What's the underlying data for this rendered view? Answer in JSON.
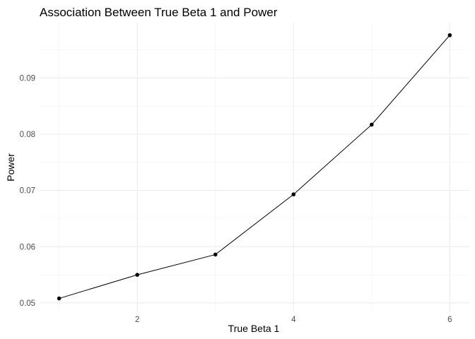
{
  "chart_data": {
    "type": "line",
    "title": "Association Between True Beta 1 and Power",
    "xlabel": "True Beta 1",
    "ylabel": "Power",
    "x": [
      1,
      2,
      3,
      4,
      5,
      6
    ],
    "series": [
      {
        "values": [
          0.0508,
          0.055,
          0.0586,
          0.0693,
          0.0817,
          0.0976
        ]
      }
    ],
    "x_ticks": [
      2,
      4,
      6
    ],
    "x_tick_labels": [
      "2",
      "4",
      "6"
    ],
    "y_ticks": [
      0.05,
      0.06,
      0.07,
      0.08,
      0.09
    ],
    "y_tick_labels": [
      "0.05",
      "0.06",
      "0.07",
      "0.08",
      "0.09"
    ],
    "xlim": [
      0.75,
      6.25
    ],
    "ylim": [
      0.04836,
      0.09984
    ],
    "grid": true,
    "legend": "none",
    "colors": {
      "line": "#000000",
      "points": "#000000",
      "grid": "#ebebeb"
    }
  }
}
